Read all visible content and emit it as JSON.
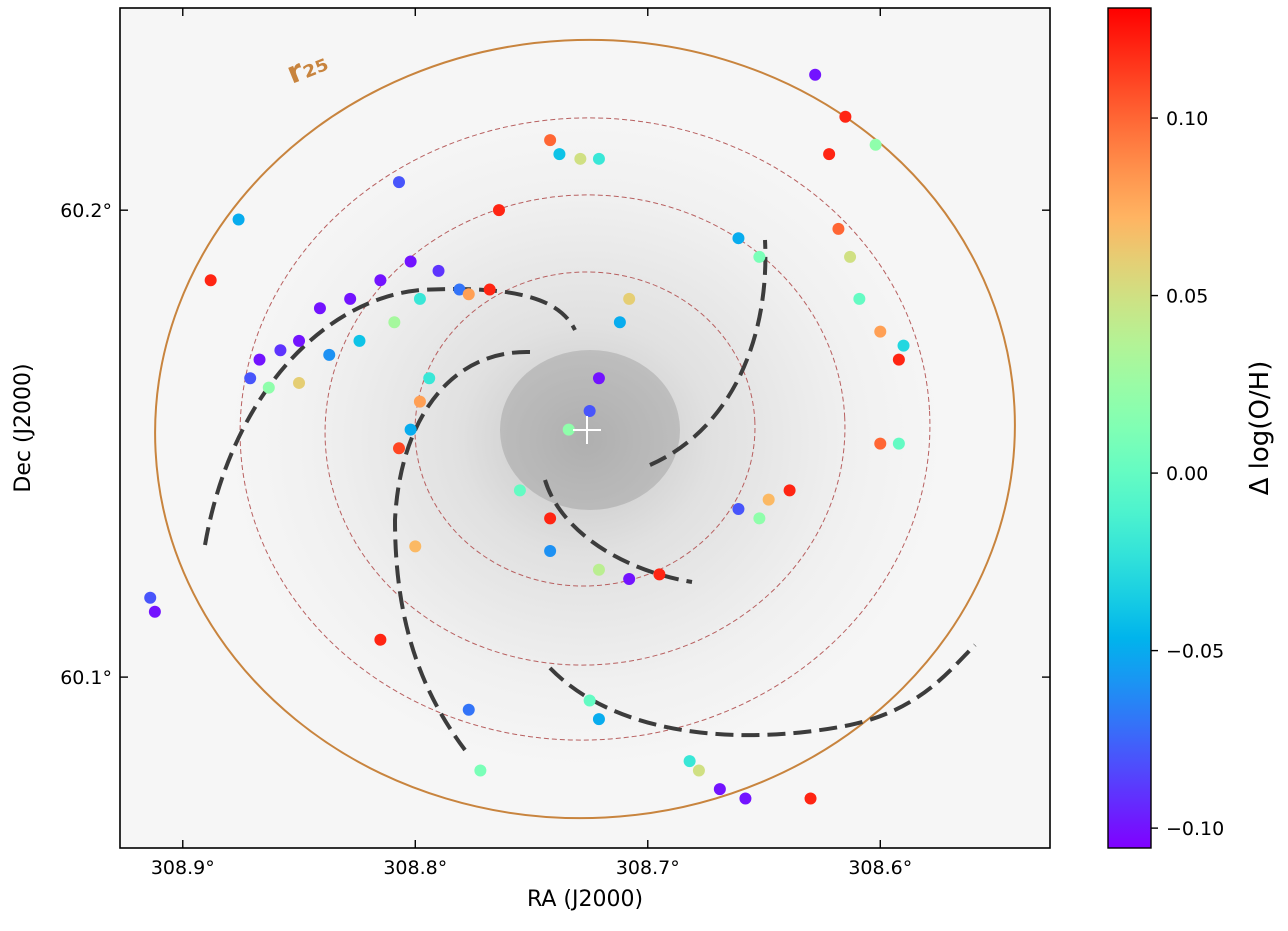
{
  "chart_data": {
    "type": "scatter",
    "xlabel": "RA (J2000)",
    "ylabel": "Dec (J2000)",
    "annotation": "r₂₅",
    "xlim": [
      308.927,
      308.527
    ],
    "ylim": [
      60.0634,
      60.2433
    ],
    "xticks": [
      {
        "value": 308.9,
        "label": "308.9°"
      },
      {
        "value": 308.8,
        "label": "308.8°"
      },
      {
        "value": 308.7,
        "label": "308.7°"
      },
      {
        "value": 308.6,
        "label": "308.6°"
      }
    ],
    "yticks": [
      {
        "value": 60.1,
        "label": "60.1°"
      },
      {
        "value": 60.2,
        "label": "60.2°"
      }
    ],
    "colormap": "rainbow",
    "colorbar": {
      "label": "Δ log(O/H)",
      "lim": [
        -0.1056,
        0.131
      ],
      "ticks": [
        {
          "value": 0.1,
          "label": "0.10"
        },
        {
          "value": 0.05,
          "label": "0.05"
        },
        {
          "value": 0,
          "label": "0.00"
        },
        {
          "value": -0.05,
          "label": "−0.05"
        },
        {
          "value": -0.1,
          "label": "−0.10"
        }
      ]
    },
    "x": [
      308.867,
      308.858,
      308.85,
      308.841,
      308.828,
      308.815,
      308.802,
      308.79,
      308.781,
      308.871,
      308.863,
      308.85,
      308.837,
      308.824,
      308.809,
      308.798,
      308.777,
      308.768,
      308.738,
      308.729,
      308.721,
      308.742,
      308.661,
      308.652,
      308.622,
      308.618,
      308.613,
      308.609,
      308.6,
      308.592,
      308.59,
      308.721,
      308.725,
      308.734,
      308.712,
      308.708,
      308.807,
      308.802,
      308.798,
      308.794,
      308.742,
      308.721,
      308.708,
      308.695,
      308.742,
      308.755,
      308.661,
      308.648,
      308.639,
      308.652,
      308.6,
      308.592,
      308.678,
      308.669,
      308.658,
      308.682,
      308.725,
      308.721,
      308.772,
      308.777,
      308.914,
      308.912,
      308.876,
      308.628,
      308.615,
      308.602,
      308.888,
      308.807,
      308.764,
      308.63,
      308.8,
      308.815
    ],
    "y": [
      60.168,
      60.17,
      60.172,
      60.179,
      60.181,
      60.185,
      60.189,
      60.187,
      60.183,
      60.164,
      60.162,
      60.163,
      60.169,
      60.172,
      60.176,
      60.181,
      60.182,
      60.183,
      60.212,
      60.211,
      60.211,
      60.215,
      60.194,
      60.19,
      60.212,
      60.196,
      60.19,
      60.181,
      60.174,
      60.168,
      60.171,
      60.164,
      60.157,
      60.153,
      60.176,
      60.181,
      60.149,
      60.153,
      60.159,
      60.164,
      60.127,
      60.123,
      60.121,
      60.122,
      60.134,
      60.14,
      60.136,
      60.138,
      60.14,
      60.134,
      60.15,
      60.15,
      60.08,
      60.076,
      60.074,
      60.082,
      60.095,
      60.091,
      60.08,
      60.093,
      60.117,
      60.114,
      60.198,
      60.229,
      60.22,
      60.214,
      60.185,
      60.206,
      60.2,
      60.074,
      60.128,
      60.108
    ],
    "values": [
      -0.1,
      -0.09,
      -0.1,
      -0.1,
      -0.1,
      -0.1,
      -0.1,
      -0.09,
      -0.07,
      -0.08,
      0.02,
      0.06,
      -0.06,
      -0.04,
      0.03,
      -0.02,
      0.08,
      0.12,
      -0.04,
      0.05,
      -0.02,
      0.1,
      -0.05,
      0.01,
      0.12,
      0.1,
      0.05,
      0.0,
      0.08,
      0.12,
      -0.03,
      -0.1,
      -0.08,
      0.02,
      -0.05,
      0.06,
      0.11,
      -0.05,
      0.08,
      -0.02,
      -0.06,
      0.04,
      -0.1,
      0.12,
      0.12,
      0.0,
      -0.08,
      0.07,
      0.12,
      0.02,
      0.1,
      0.0,
      0.05,
      -0.1,
      -0.1,
      -0.02,
      0.0,
      -0.05,
      0.01,
      -0.07,
      -0.08,
      -0.1,
      -0.05,
      -0.1,
      0.12,
      0.02,
      0.12,
      -0.08,
      0.12,
      0.12,
      0.07,
      0.12
    ]
  }
}
